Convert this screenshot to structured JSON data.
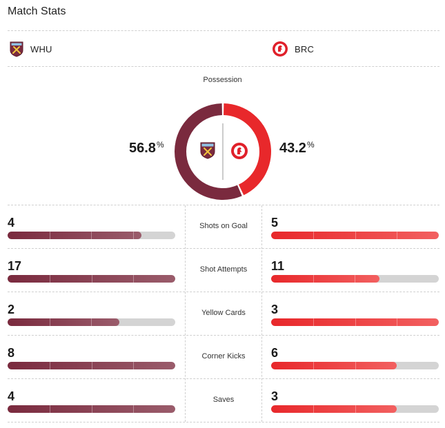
{
  "header": {
    "title": "Match Stats"
  },
  "teams": {
    "home": {
      "abbr": "WHU",
      "logo": "west-ham-crest-icon",
      "color": "#7a2a3e"
    },
    "away": {
      "abbr": "BRC",
      "logo": "bristol-city-crest-icon",
      "color": "#e8282b"
    }
  },
  "possession": {
    "label": "Possession",
    "home_value": "56.8",
    "away_value": "43.2",
    "unit": "%"
  },
  "chart_data": {
    "type": "pie",
    "categories": [
      "WHU",
      "BRC"
    ],
    "values": [
      56.8,
      43.2
    ],
    "title": "Possession"
  },
  "stats": [
    {
      "label": "Shots on Goal",
      "home": "4",
      "away": "5",
      "home_fill": 0.8,
      "away_fill": 1.0
    },
    {
      "label": "Shot Attempts",
      "home": "17",
      "away": "11",
      "home_fill": 1.0,
      "away_fill": 0.647
    },
    {
      "label": "Yellow Cards",
      "home": "2",
      "away": "3",
      "home_fill": 0.667,
      "away_fill": 1.0
    },
    {
      "label": "Corner Kicks",
      "home": "8",
      "away": "6",
      "home_fill": 1.0,
      "away_fill": 0.75
    },
    {
      "label": "Saves",
      "home": "4",
      "away": "3",
      "home_fill": 1.0,
      "away_fill": 0.75
    }
  ]
}
